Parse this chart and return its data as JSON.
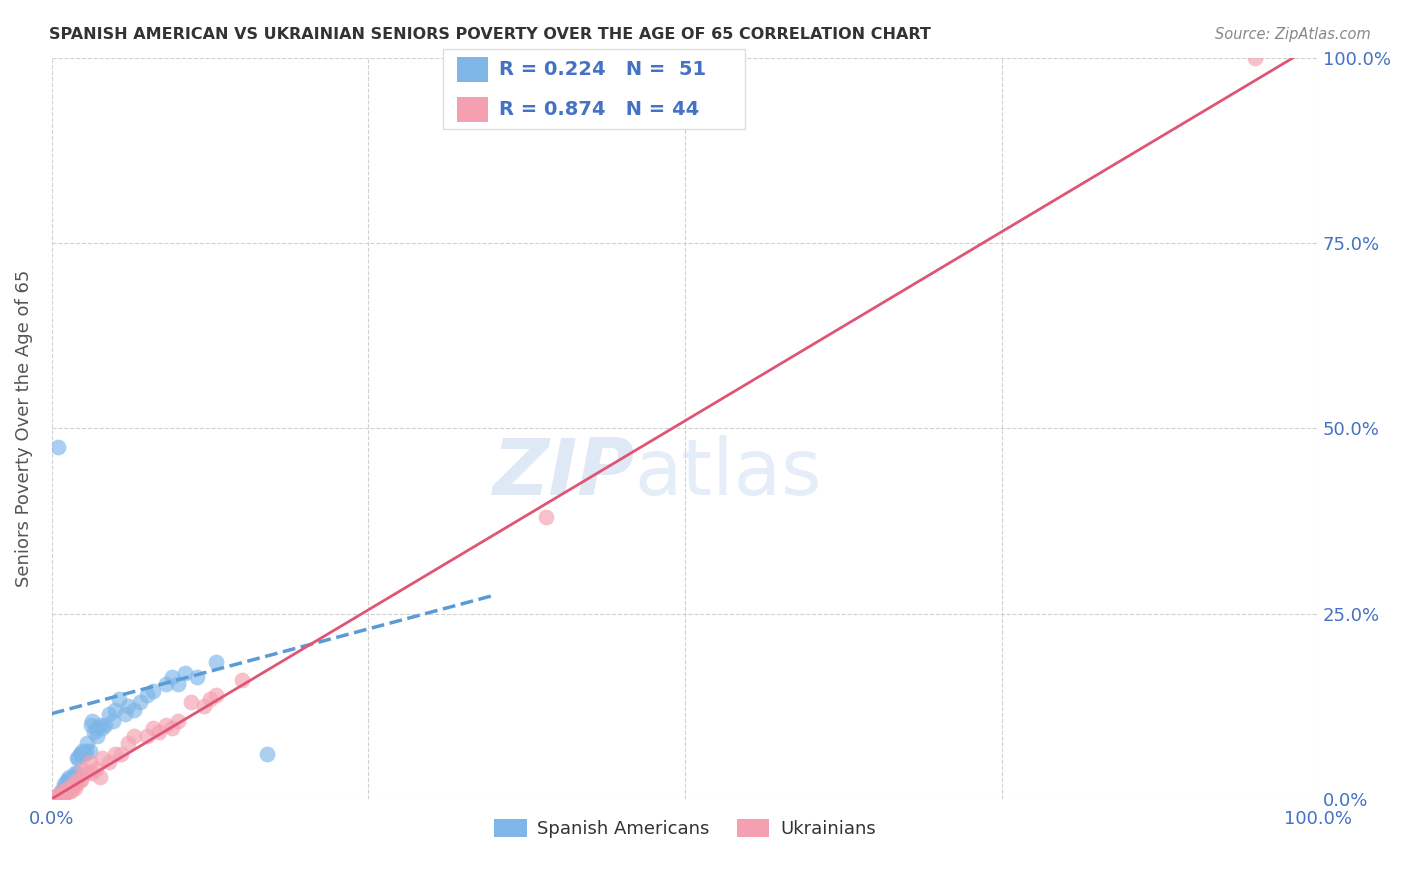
{
  "title": "SPANISH AMERICAN VS UKRAINIAN SENIORS POVERTY OVER THE AGE OF 65 CORRELATION CHART",
  "source": "Source: ZipAtlas.com",
  "ylabel": "Seniors Poverty Over the Age of 65",
  "xlim": [
    0,
    1.0
  ],
  "ylim": [
    0,
    1.0
  ],
  "xticks": [
    0.0,
    0.25,
    0.5,
    0.75,
    1.0
  ],
  "yticks": [
    0.0,
    0.25,
    0.5,
    0.75,
    1.0
  ],
  "right_yticklabels": [
    "0.0%",
    "25.0%",
    "50.0%",
    "75.0%",
    "100.0%"
  ],
  "legend_r_blue": "R = 0.224",
  "legend_n_blue": "N =  51",
  "legend_r_pink": "R = 0.874",
  "legend_n_pink": "N = 44",
  "blue_color": "#7EB6E8",
  "pink_color": "#F4A0B0",
  "blue_line_color": "#5B9BD5",
  "pink_line_color": "#E05575",
  "watermark_zip": "ZIP",
  "watermark_atlas": "atlas",
  "background_color": "#ffffff",
  "grid_color": "#cccccc",
  "title_color": "#333333",
  "source_color": "#888888",
  "axis_label_color": "#555555",
  "tick_label_color": "#4472C4",
  "legend_r_color": "#4472C4",
  "legend_text_color": "#333333",
  "blue_x": [
    0.005,
    0.007,
    0.008,
    0.01,
    0.01,
    0.011,
    0.012,
    0.013,
    0.014,
    0.015,
    0.016,
    0.017,
    0.018,
    0.019,
    0.02,
    0.02,
    0.021,
    0.022,
    0.023,
    0.024,
    0.025,
    0.026,
    0.027,
    0.028,
    0.03,
    0.031,
    0.032,
    0.033,
    0.035,
    0.036,
    0.038,
    0.04,
    0.042,
    0.045,
    0.048,
    0.05,
    0.053,
    0.058,
    0.06,
    0.065,
    0.07,
    0.075,
    0.08,
    0.09,
    0.095,
    0.1,
    0.105,
    0.115,
    0.005,
    0.13,
    0.17
  ],
  "blue_y": [
    0.005,
    0.01,
    0.01,
    0.015,
    0.02,
    0.02,
    0.025,
    0.025,
    0.03,
    0.025,
    0.025,
    0.03,
    0.035,
    0.03,
    0.035,
    0.055,
    0.055,
    0.06,
    0.06,
    0.065,
    0.06,
    0.06,
    0.065,
    0.075,
    0.065,
    0.1,
    0.105,
    0.09,
    0.095,
    0.085,
    0.1,
    0.095,
    0.1,
    0.115,
    0.105,
    0.12,
    0.135,
    0.115,
    0.125,
    0.12,
    0.13,
    0.14,
    0.145,
    0.155,
    0.165,
    0.155,
    0.17,
    0.165,
    0.475,
    0.185,
    0.06
  ],
  "pink_x": [
    0.004,
    0.005,
    0.006,
    0.007,
    0.008,
    0.009,
    0.01,
    0.011,
    0.012,
    0.013,
    0.014,
    0.015,
    0.016,
    0.017,
    0.018,
    0.019,
    0.02,
    0.022,
    0.023,
    0.025,
    0.027,
    0.03,
    0.032,
    0.035,
    0.038,
    0.04,
    0.045,
    0.05,
    0.055,
    0.06,
    0.065,
    0.075,
    0.08,
    0.085,
    0.09,
    0.095,
    0.1,
    0.11,
    0.12,
    0.125,
    0.13,
    0.15,
    0.39,
    0.95
  ],
  "pink_y": [
    0.002,
    0.005,
    0.005,
    0.005,
    0.01,
    0.005,
    0.005,
    0.01,
    0.01,
    0.015,
    0.01,
    0.01,
    0.015,
    0.02,
    0.015,
    0.02,
    0.025,
    0.025,
    0.025,
    0.04,
    0.035,
    0.05,
    0.035,
    0.04,
    0.03,
    0.055,
    0.05,
    0.06,
    0.06,
    0.075,
    0.085,
    0.085,
    0.095,
    0.09,
    0.1,
    0.095,
    0.105,
    0.13,
    0.125,
    0.135,
    0.14,
    0.16,
    0.38,
    1.0
  ],
  "blue_trend_x": [
    0.0,
    0.35
  ],
  "blue_trend_y": [
    0.115,
    0.275
  ],
  "pink_trend_x": [
    0.0,
    1.0
  ],
  "pink_trend_y": [
    0.0,
    1.02
  ]
}
